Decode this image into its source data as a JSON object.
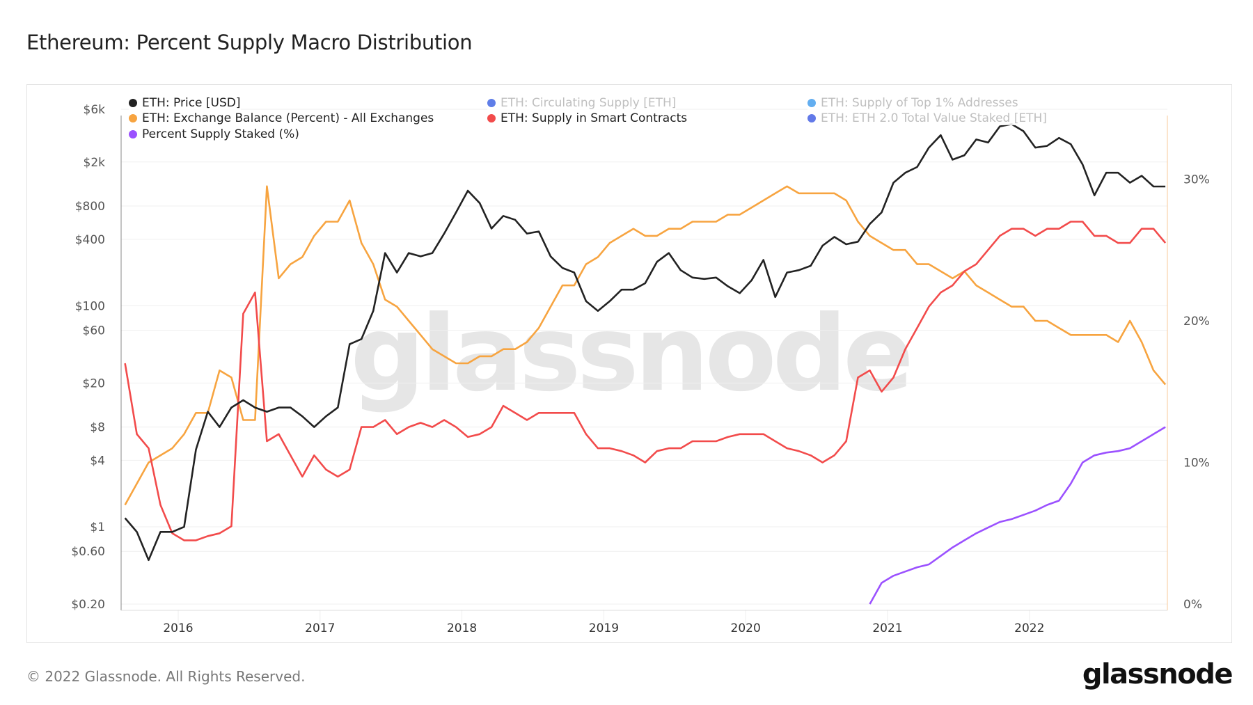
{
  "title": "Ethereum: Percent Supply Macro Distribution",
  "footer": {
    "copyright": "© 2022 Glassnode. All Rights Reserved.",
    "logo": "glassnode",
    "watermark": "glassnode"
  },
  "legend": [
    {
      "label": "ETH: Price [USD]",
      "color": "#222222",
      "active": true
    },
    {
      "label": "ETH: Circulating Supply [ETH]",
      "color": "#5f7ee8",
      "active": false
    },
    {
      "label": "ETH: Supply of Top 1% Addresses",
      "color": "#63aef0",
      "active": false
    },
    {
      "label": "ETH: Exchange Balance (Percent) - All Exchanges",
      "color": "#f7a440",
      "active": true
    },
    {
      "label": "ETH: Supply in Smart Contracts",
      "color": "#f24b4b",
      "active": true
    },
    {
      "label": "ETH: ETH 2.0 Total Value Staked [ETH]",
      "color": "#6279e8",
      "active": false
    },
    {
      "label": "Percent Supply Staked (%)",
      "color": "#9b51ff",
      "active": true
    }
  ],
  "chart_data": {
    "type": "line",
    "title": "Ethereum: Percent Supply Macro Distribution",
    "x_ticks": [
      "2016",
      "2017",
      "2018",
      "2019",
      "2020",
      "2021",
      "2022"
    ],
    "x_range": [
      "2015-08",
      "2022-12"
    ],
    "y_left": {
      "scale": "log",
      "ticks": [
        "$6k",
        "$2k",
        "$800",
        "$400",
        "$100",
        "$60",
        "$20",
        "$8",
        "$4",
        "$1",
        "$0.60",
        "$0.20"
      ],
      "tick_values": [
        6000,
        2000,
        800,
        400,
        100,
        60,
        20,
        8,
        4,
        1,
        0.6,
        0.2
      ],
      "range": [
        0.2,
        6000
      ]
    },
    "y_right": {
      "scale": "linear",
      "ticks": [
        "0%",
        "10%",
        "20%",
        "30%"
      ],
      "tick_values": [
        0,
        10,
        20,
        30
      ],
      "range": [
        0,
        35
      ]
    },
    "grid": true,
    "legend_position": "top-left",
    "series": [
      {
        "name": "ETH: Price [USD]",
        "axis": "left",
        "color": "#222222",
        "x": [
          "2015-08",
          "2015-09",
          "2015-10",
          "2015-11",
          "2015-12",
          "2016-01",
          "2016-02",
          "2016-03",
          "2016-04",
          "2016-05",
          "2016-06",
          "2016-07",
          "2016-08",
          "2016-09",
          "2016-10",
          "2016-11",
          "2016-12",
          "2017-01",
          "2017-02",
          "2017-03",
          "2017-04",
          "2017-05",
          "2017-06",
          "2017-07",
          "2017-08",
          "2017-09",
          "2017-10",
          "2017-11",
          "2017-12",
          "2018-01",
          "2018-02",
          "2018-03",
          "2018-04",
          "2018-05",
          "2018-06",
          "2018-07",
          "2018-08",
          "2018-09",
          "2018-10",
          "2018-11",
          "2018-12",
          "2019-01",
          "2019-02",
          "2019-03",
          "2019-04",
          "2019-05",
          "2019-06",
          "2019-07",
          "2019-08",
          "2019-09",
          "2019-10",
          "2019-11",
          "2019-12",
          "2020-01",
          "2020-02",
          "2020-03",
          "2020-04",
          "2020-05",
          "2020-06",
          "2020-07",
          "2020-08",
          "2020-09",
          "2020-10",
          "2020-11",
          "2020-12",
          "2021-01",
          "2021-02",
          "2021-03",
          "2021-04",
          "2021-05",
          "2021-06",
          "2021-07",
          "2021-08",
          "2021-09",
          "2021-10",
          "2021-11",
          "2021-12",
          "2022-01",
          "2022-02",
          "2022-03",
          "2022-04",
          "2022-05",
          "2022-06",
          "2022-07",
          "2022-08",
          "2022-09",
          "2022-10",
          "2022-11",
          "2022-12"
        ],
        "values": [
          1.2,
          0.9,
          0.5,
          0.9,
          0.9,
          1.0,
          5,
          11,
          8,
          12,
          14,
          12,
          11,
          12,
          12,
          10,
          8,
          10,
          12,
          45,
          50,
          90,
          300,
          200,
          300,
          280,
          300,
          450,
          700,
          1100,
          850,
          500,
          650,
          600,
          450,
          470,
          280,
          220,
          200,
          110,
          90,
          110,
          140,
          140,
          160,
          250,
          300,
          210,
          180,
          175,
          180,
          150,
          130,
          170,
          260,
          120,
          200,
          210,
          230,
          350,
          420,
          360,
          380,
          550,
          700,
          1300,
          1600,
          1800,
          2700,
          3500,
          2100,
          2300,
          3200,
          3000,
          4200,
          4400,
          3800,
          2700,
          2800,
          3300,
          2900,
          1900,
          1000,
          1600,
          1600,
          1300,
          1500,
          1200,
          1200
        ]
      },
      {
        "name": "ETH: Exchange Balance (Percent) - All Exchanges",
        "axis": "right",
        "color": "#f7a440",
        "x": [
          "2015-08",
          "2015-10",
          "2015-12",
          "2016-01",
          "2016-02",
          "2016-03",
          "2016-04",
          "2016-05",
          "2016-06",
          "2016-07",
          "2016-08",
          "2016-09",
          "2016-10",
          "2016-11",
          "2016-12",
          "2017-01",
          "2017-02",
          "2017-03",
          "2017-04",
          "2017-05",
          "2017-06",
          "2017-07",
          "2017-08",
          "2017-09",
          "2017-10",
          "2017-11",
          "2017-12",
          "2018-01",
          "2018-02",
          "2018-03",
          "2018-04",
          "2018-05",
          "2018-06",
          "2018-07",
          "2018-08",
          "2018-09",
          "2018-10",
          "2018-11",
          "2018-12",
          "2019-01",
          "2019-02",
          "2019-03",
          "2019-04",
          "2019-05",
          "2019-06",
          "2019-07",
          "2019-08",
          "2019-09",
          "2019-10",
          "2019-11",
          "2019-12",
          "2020-01",
          "2020-02",
          "2020-03",
          "2020-04",
          "2020-05",
          "2020-06",
          "2020-07",
          "2020-08",
          "2020-09",
          "2020-10",
          "2020-11",
          "2020-12",
          "2021-01",
          "2021-02",
          "2021-03",
          "2021-04",
          "2021-05",
          "2021-06",
          "2021-07",
          "2021-08",
          "2021-09",
          "2021-10",
          "2021-11",
          "2021-12",
          "2022-01",
          "2022-02",
          "2022-03",
          "2022-04",
          "2022-05",
          "2022-06",
          "2022-07",
          "2022-08",
          "2022-09",
          "2022-10",
          "2022-11",
          "2022-12"
        ],
        "values": [
          7,
          10,
          11,
          12,
          13.5,
          13.5,
          16.5,
          16,
          13,
          13,
          29.5,
          23,
          24,
          24.5,
          26,
          27,
          27,
          28.5,
          25.5,
          24,
          21.5,
          21,
          20,
          19,
          18,
          17.5,
          17,
          17,
          17.5,
          17.5,
          18,
          18,
          18.5,
          19.5,
          21,
          22.5,
          22.5,
          24,
          24.5,
          25.5,
          26,
          26.5,
          26,
          26,
          26.5,
          26.5,
          27,
          27,
          27,
          27.5,
          27.5,
          28,
          28.5,
          29,
          29.5,
          29,
          29,
          29,
          29,
          28.5,
          27,
          26,
          25.5,
          25,
          25,
          24,
          24,
          23.5,
          23,
          23.5,
          22.5,
          22,
          21.5,
          21,
          21,
          20,
          20,
          19.5,
          19,
          19,
          19,
          19,
          18.5,
          20,
          18.5,
          16.5,
          15.5
        ]
      },
      {
        "name": "ETH: Supply in Smart Contracts",
        "axis": "right",
        "color": "#f24b4b",
        "x": [
          "2015-08",
          "2015-09",
          "2015-10",
          "2015-11",
          "2015-12",
          "2016-01",
          "2016-02",
          "2016-03",
          "2016-04",
          "2016-05",
          "2016-06",
          "2016-07",
          "2016-08",
          "2016-09",
          "2016-10",
          "2016-11",
          "2016-12",
          "2017-01",
          "2017-02",
          "2017-03",
          "2017-04",
          "2017-05",
          "2017-06",
          "2017-07",
          "2017-08",
          "2017-09",
          "2017-10",
          "2017-11",
          "2017-12",
          "2018-01",
          "2018-02",
          "2018-03",
          "2018-04",
          "2018-05",
          "2018-06",
          "2018-07",
          "2018-08",
          "2018-09",
          "2018-10",
          "2018-11",
          "2018-12",
          "2019-01",
          "2019-02",
          "2019-03",
          "2019-04",
          "2019-05",
          "2019-06",
          "2019-07",
          "2019-08",
          "2019-09",
          "2019-10",
          "2019-11",
          "2019-12",
          "2020-01",
          "2020-02",
          "2020-03",
          "2020-04",
          "2020-05",
          "2020-06",
          "2020-07",
          "2020-08",
          "2020-09",
          "2020-10",
          "2020-11",
          "2020-12",
          "2021-01",
          "2021-02",
          "2021-03",
          "2021-04",
          "2021-05",
          "2021-06",
          "2021-07",
          "2021-08",
          "2021-09",
          "2021-10",
          "2021-11",
          "2021-12",
          "2022-01",
          "2022-02",
          "2022-03",
          "2022-04",
          "2022-05",
          "2022-06",
          "2022-07",
          "2022-08",
          "2022-09",
          "2022-10",
          "2022-11",
          "2022-12"
        ],
        "values": [
          17,
          12,
          11,
          7,
          5,
          4.5,
          4.5,
          4.8,
          5,
          5.5,
          20.5,
          22,
          11.5,
          12,
          10.5,
          9,
          10.5,
          9.5,
          9,
          9.5,
          12.5,
          12.5,
          13,
          12,
          12.5,
          12.8,
          12.5,
          13,
          12.5,
          11.8,
          12,
          12.5,
          14,
          13.5,
          13,
          13.5,
          13.5,
          13.5,
          13.5,
          12,
          11,
          11,
          10.8,
          10.5,
          10,
          10.8,
          11,
          11,
          11.5,
          11.5,
          11.5,
          11.8,
          12,
          12,
          12,
          11.5,
          11,
          10.8,
          10.5,
          10,
          10.5,
          11.5,
          16,
          16.5,
          15,
          16,
          18,
          19.5,
          21,
          22,
          22.5,
          23.5,
          24,
          25,
          26,
          26.5,
          26.5,
          26,
          26.5,
          26.5,
          27,
          27,
          26,
          26,
          25.5,
          25.5,
          26.5,
          26.5,
          25.5
        ]
      },
      {
        "name": "Percent Supply Staked (%)",
        "axis": "right",
        "color": "#9b51ff",
        "x": [
          "2020-11",
          "2020-12",
          "2021-01",
          "2021-02",
          "2021-03",
          "2021-04",
          "2021-05",
          "2021-06",
          "2021-07",
          "2021-08",
          "2021-09",
          "2021-10",
          "2021-11",
          "2021-12",
          "2022-01",
          "2022-02",
          "2022-03",
          "2022-04",
          "2022-05",
          "2022-06",
          "2022-07",
          "2022-08",
          "2022-09",
          "2022-10",
          "2022-11",
          "2022-12"
        ],
        "values": [
          0,
          1.5,
          2,
          2.3,
          2.6,
          2.8,
          3.4,
          4,
          4.5,
          5,
          5.4,
          5.8,
          6,
          6.3,
          6.6,
          7,
          7.3,
          8.5,
          10,
          10.5,
          10.7,
          10.8,
          11,
          11.5,
          12,
          12.5
        ]
      }
    ]
  }
}
